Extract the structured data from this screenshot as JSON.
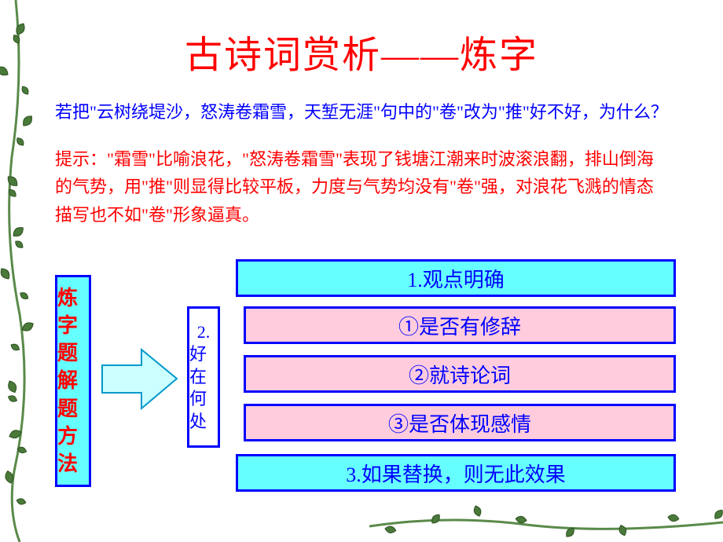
{
  "title": {
    "text": "古诗词赏析——炼字",
    "color": "#ff0000",
    "fontsize": 48
  },
  "question": {
    "text": "若把\"云树绕堤沙，怒涛卷霜雪，天堑无涯\"句中的\"卷\"改为\"推\"好不好，为什么？",
    "color": "#0000ff",
    "fontsize": 22
  },
  "hint": {
    "text": "提示：\"霜雪\"比喻浪花，\"怒涛卷霜雪\"表现了钱塘江潮来时波滚浪翻，排山倒海的气势，用\"推\"则显得比较平板，力度与气势均没有\"卷\"强，对浪花飞溅的情态描写也不如\"卷\"形象逼真。",
    "color": "#ff0000",
    "fontsize": 22
  },
  "decoration": {
    "leaf_fill": "#4a7a3a",
    "leaf_stroke": "#2d5020",
    "vine_stroke": "#5a8a4a"
  },
  "method_box": {
    "text": "炼字题解题方法",
    "border_color": "#0000ff",
    "bg_color": "#66ffff",
    "text_color": "#ff0000"
  },
  "arrow": {
    "fill": "#ccffff",
    "stroke": "#0099cc"
  },
  "good_box": {
    "prefix": "2.",
    "text": "好在何处",
    "border_color": "#0000ff",
    "bg_color": "#ffffff",
    "text_color": "#0000ff"
  },
  "boxes": {
    "box1": {
      "text": "1.观点明确",
      "border": "#0000ff",
      "bg": "#66ffff",
      "color": "#0000ff"
    },
    "box2": {
      "text": "①是否有修辞",
      "border": "#0000ff",
      "bg": "#ffccdd",
      "color": "#0000ff"
    },
    "box3": {
      "text": "②就诗论词",
      "border": "#0000ff",
      "bg": "#ffccdd",
      "color": "#0000ff"
    },
    "box4": {
      "text": "③是否体现感情",
      "border": "#0000ff",
      "bg": "#ffccdd",
      "color": "#0000ff"
    },
    "box5": {
      "text": "3.如果替换，则无此效果",
      "border": "#0000ff",
      "bg": "#66ffff",
      "color": "#0000ff"
    }
  }
}
